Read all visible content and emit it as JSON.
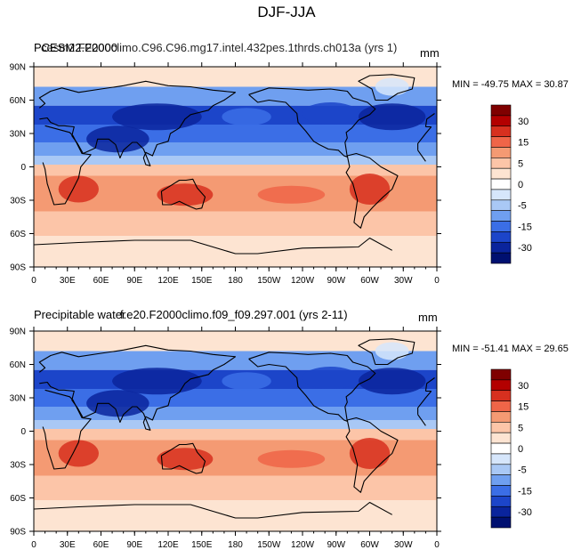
{
  "title": "DJF-JJA",
  "colorbar": {
    "levels": [
      "30",
      "15",
      "5",
      "0",
      "-5",
      "-15",
      "-30"
    ],
    "colors": [
      "#7f0000",
      "#b30000",
      "#d7301f",
      "#ef6548",
      "#f49a73",
      "#fcc5a8",
      "#fde4d2",
      "#ffffff",
      "#d6e6fb",
      "#a9c8f5",
      "#6f9ff0",
      "#3b6ee6",
      "#1c45c9",
      "#0a249c",
      "#001070"
    ]
  },
  "chart_data": [
    {
      "type": "heatmap",
      "title": "Precipitable water",
      "case_label": "cesm2.F2000climo.C96.C96.mg17.intel.432pes.1thrds.ch013a (yrs 1)",
      "overprint": "PCESM2.F2000",
      "units": "mm",
      "min": -49.75,
      "max": 30.87,
      "min_max_text": "MIN = -49.75  MAX =  30.87",
      "x_tick_labels": [
        "0",
        "30E",
        "60E",
        "90E",
        "120E",
        "150E",
        "180",
        "150W",
        "120W",
        "90W",
        "60W",
        "30W",
        "0"
      ],
      "y_tick_labels": [
        "90N",
        "60N",
        "30N",
        "0",
        "30S",
        "60S",
        "90S"
      ],
      "xlim": [
        0,
        360
      ],
      "ylim": [
        -90,
        90
      ]
    },
    {
      "type": "heatmap",
      "title": "Precipitable water",
      "case_label": "f.e20.F2000climo.f09_f09.297.001 (yrs 2-11)",
      "units": "mm",
      "min": -51.41,
      "max": 29.65,
      "min_max_text": "MIN = -51.41  MAX =  29.65",
      "x_tick_labels": [
        "0",
        "30E",
        "60E",
        "90E",
        "120E",
        "150E",
        "180",
        "150W",
        "120W",
        "90W",
        "60W",
        "30W",
        "0"
      ],
      "y_tick_labels": [
        "90N",
        "60N",
        "30N",
        "0",
        "30S",
        "60S",
        "90S"
      ],
      "xlim": [
        0,
        360
      ],
      "ylim": [
        -90,
        90
      ]
    }
  ]
}
